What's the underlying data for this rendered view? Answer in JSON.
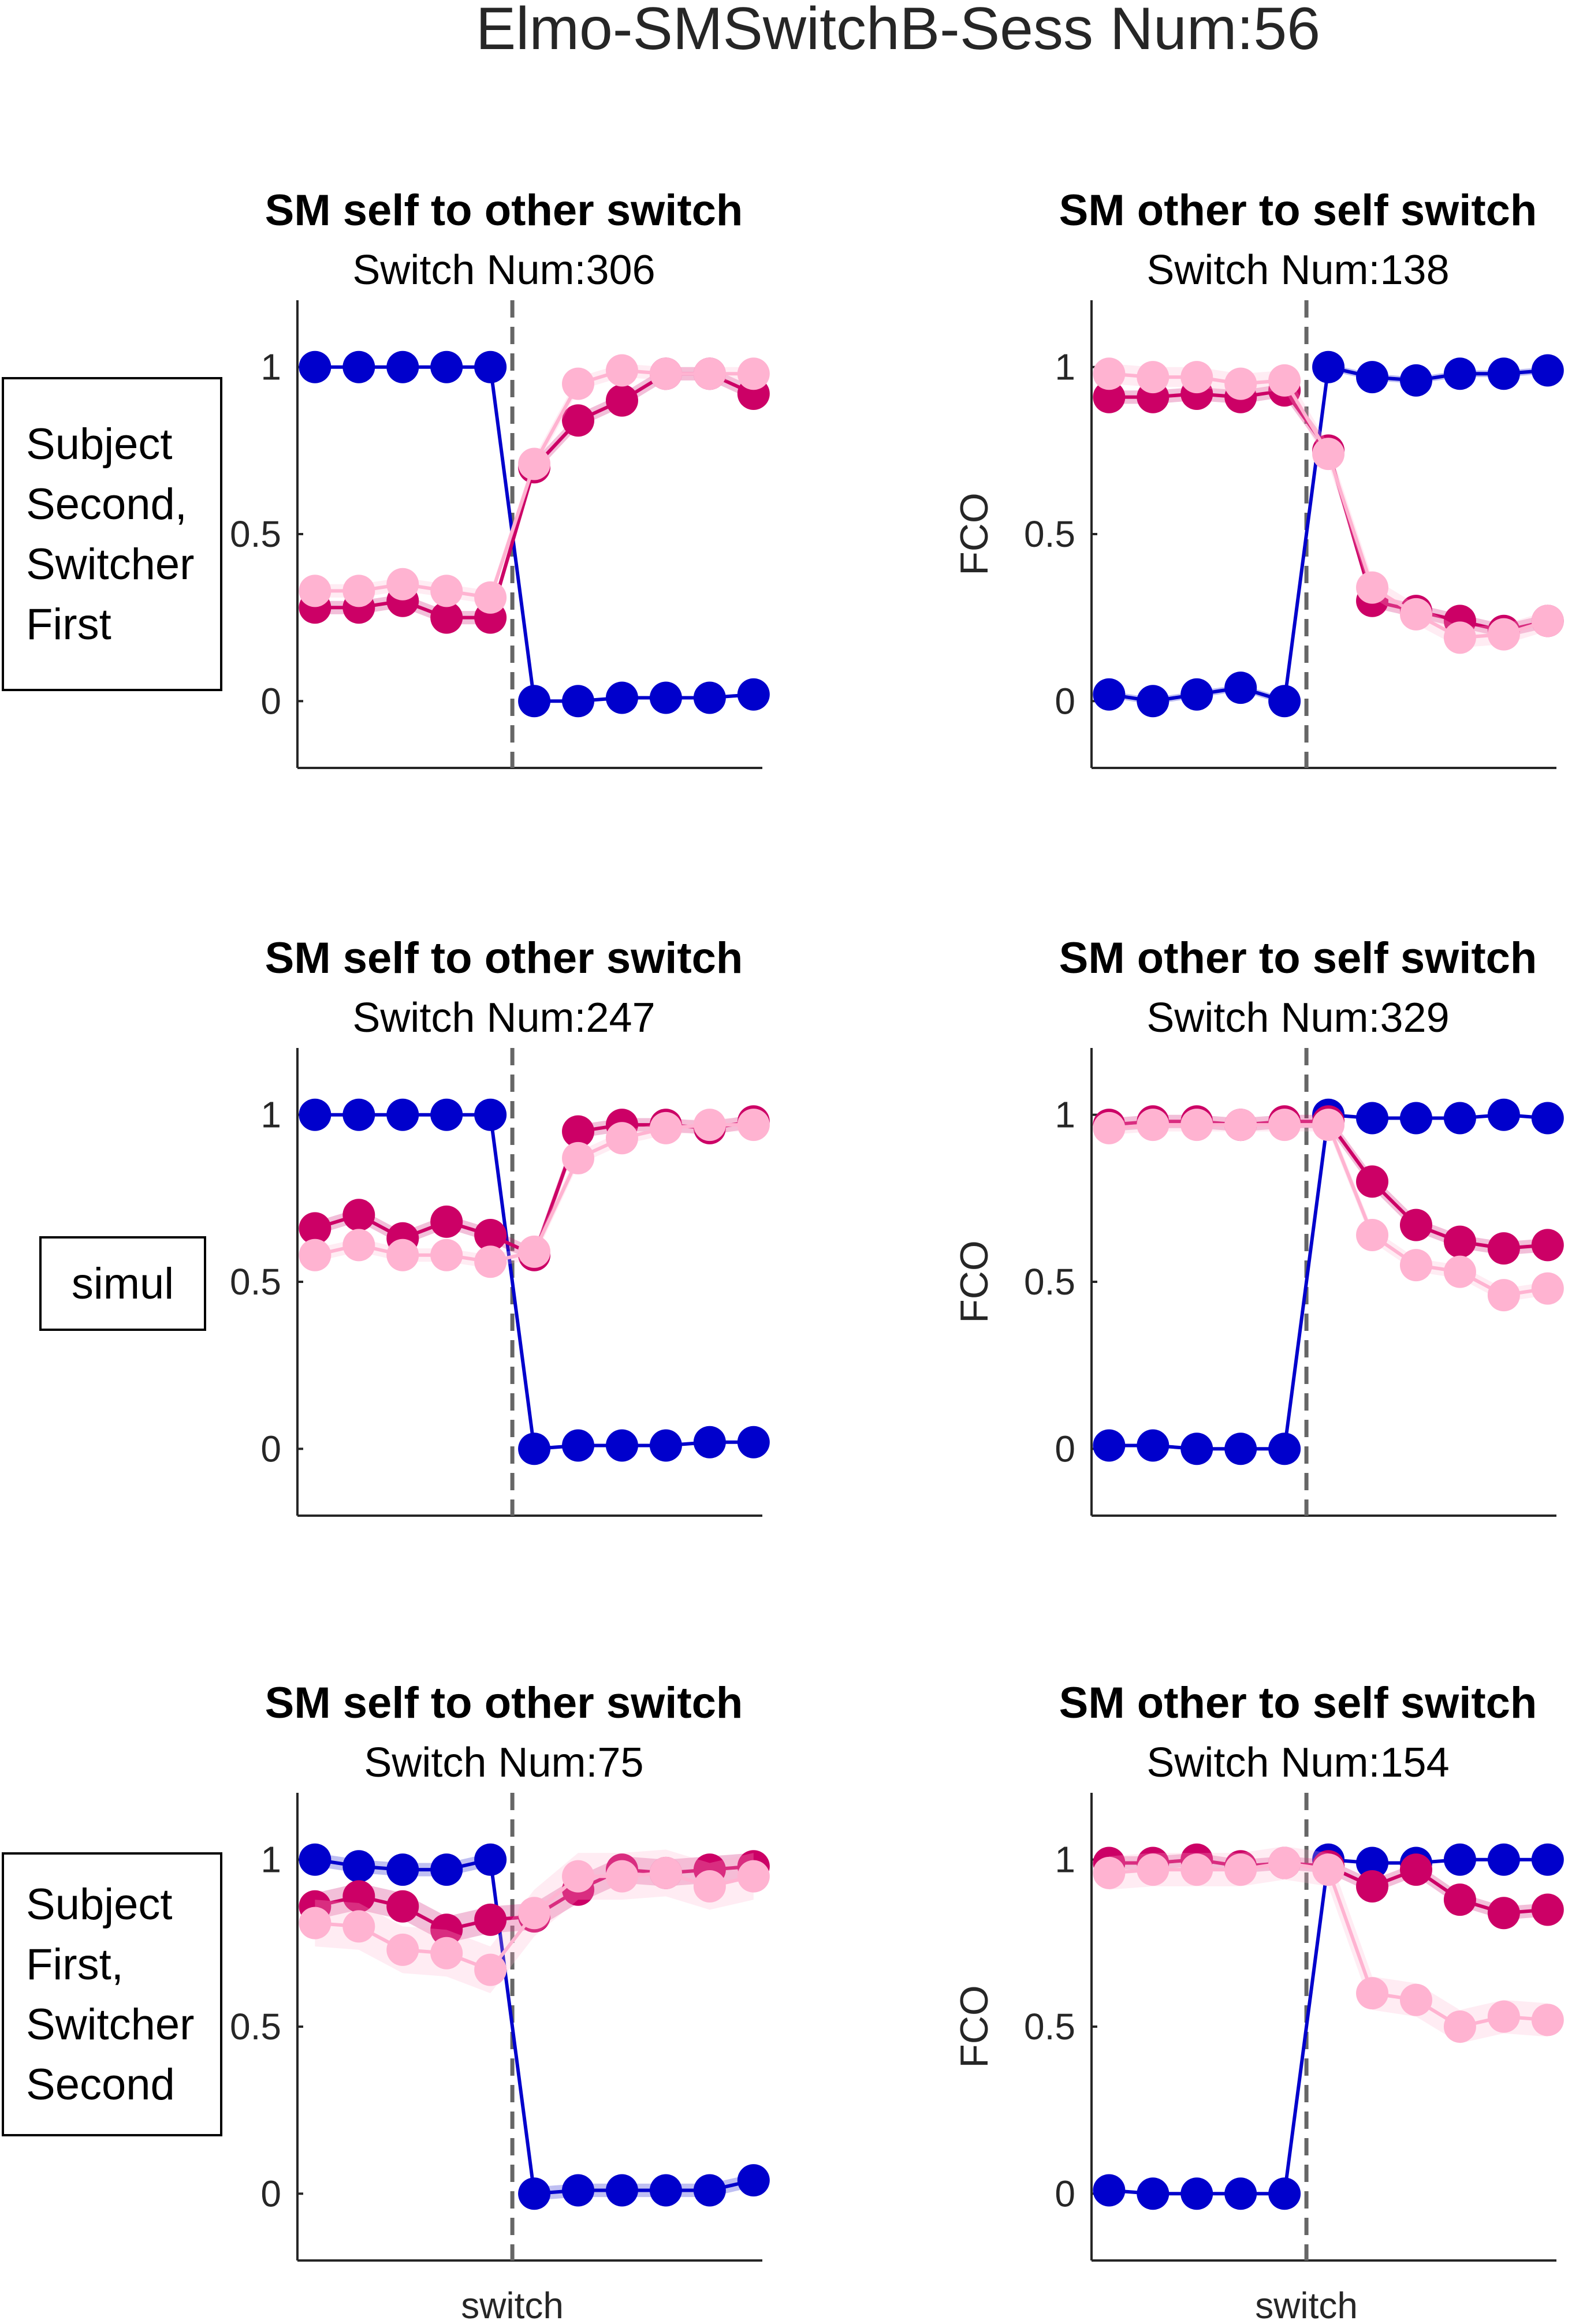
{
  "title": "Elmo-SMSwitchB-Sess Num:56",
  "colors": {
    "blue": "#0000cc",
    "magenta": "#cc0066",
    "pink": "#ffb3d1",
    "axis": "#262626",
    "switchline": "#666666"
  },
  "row_labels": [
    [
      "Subject",
      "Second,",
      "Switcher",
      "First"
    ],
    [
      "simul"
    ],
    [
      "Subject",
      "First,",
      "Switcher",
      "Second"
    ]
  ],
  "chart_data": [
    {
      "type": "line",
      "title": "SM self to other switch",
      "subtitle": "Switch Num:306",
      "ylabel": "",
      "xlabel": "",
      "ylim": [
        -0.2,
        1.2
      ],
      "yticks": [
        0,
        0.5,
        1
      ],
      "x": [
        -5,
        -4,
        -3,
        -2,
        -1,
        0,
        1,
        2,
        3,
        4,
        5
      ],
      "switch_x": -0.5,
      "series": [
        {
          "color": "blue",
          "values": [
            1,
            1,
            1,
            1,
            1,
            0,
            0,
            0.01,
            0.01,
            0.01,
            0.02
          ],
          "band": 0
        },
        {
          "color": "magenta",
          "values": [
            0.28,
            0.28,
            0.3,
            0.25,
            0.25,
            0.7,
            0.84,
            0.9,
            0.98,
            0.98,
            0.92
          ],
          "band": 0.02
        },
        {
          "color": "pink",
          "values": [
            0.33,
            0.33,
            0.35,
            0.33,
            0.31,
            0.71,
            0.95,
            0.99,
            0.98,
            0.98,
            0.98
          ],
          "band": 0.02
        }
      ]
    },
    {
      "type": "line",
      "title": "SM other to self switch",
      "subtitle": "Switch Num:138",
      "ylabel": "FCO",
      "xlabel": "",
      "ylim": [
        -0.2,
        1.2
      ],
      "yticks": [
        0,
        0.5,
        1
      ],
      "x": [
        -5,
        -4,
        -3,
        -2,
        -1,
        0,
        1,
        2,
        3,
        4,
        5
      ],
      "switch_x": -0.5,
      "series": [
        {
          "color": "blue",
          "values": [
            0.02,
            0,
            0.02,
            0.04,
            0,
            1,
            0.97,
            0.96,
            0.98,
            0.98,
            0.99
          ],
          "band": 0.01
        },
        {
          "color": "magenta",
          "values": [
            0.91,
            0.91,
            0.92,
            0.91,
            0.93,
            0.75,
            0.3,
            0.27,
            0.24,
            0.21,
            0.24
          ],
          "band": 0.02
        },
        {
          "color": "pink",
          "values": [
            0.98,
            0.97,
            0.97,
            0.95,
            0.96,
            0.74,
            0.34,
            0.26,
            0.19,
            0.2,
            0.24
          ],
          "band": 0.03
        }
      ]
    },
    {
      "type": "line",
      "title": "SM self to other switch",
      "subtitle": "Switch Num:247",
      "ylabel": "",
      "xlabel": "",
      "ylim": [
        -0.2,
        1.2
      ],
      "yticks": [
        0,
        0.5,
        1
      ],
      "x": [
        -5,
        -4,
        -3,
        -2,
        -1,
        0,
        1,
        2,
        3,
        4,
        5
      ],
      "switch_x": -0.5,
      "series": [
        {
          "color": "blue",
          "values": [
            1,
            1,
            1,
            1,
            1,
            0,
            0.01,
            0.01,
            0.01,
            0.02,
            0.02
          ],
          "band": 0
        },
        {
          "color": "magenta",
          "values": [
            0.66,
            0.7,
            0.63,
            0.68,
            0.64,
            0.58,
            0.95,
            0.97,
            0.97,
            0.96,
            0.98
          ],
          "band": 0.02
        },
        {
          "color": "pink",
          "values": [
            0.58,
            0.61,
            0.58,
            0.58,
            0.56,
            0.59,
            0.87,
            0.93,
            0.96,
            0.97,
            0.97
          ],
          "band": 0.02
        }
      ]
    },
    {
      "type": "line",
      "title": "SM other to self switch",
      "subtitle": "Switch Num:329",
      "ylabel": "FCO",
      "xlabel": "",
      "ylim": [
        -0.2,
        1.2
      ],
      "yticks": [
        0,
        0.5,
        1
      ],
      "x": [
        -5,
        -4,
        -3,
        -2,
        -1,
        0,
        1,
        2,
        3,
        4,
        5
      ],
      "switch_x": -0.5,
      "series": [
        {
          "color": "blue",
          "values": [
            0.01,
            0.01,
            0,
            0,
            0,
            1,
            0.99,
            0.99,
            0.99,
            1,
            0.99
          ],
          "band": 0
        },
        {
          "color": "magenta",
          "values": [
            0.97,
            0.98,
            0.98,
            0.97,
            0.98,
            0.98,
            0.8,
            0.67,
            0.62,
            0.6,
            0.61
          ],
          "band": 0.02
        },
        {
          "color": "pink",
          "values": [
            0.96,
            0.97,
            0.97,
            0.97,
            0.97,
            0.97,
            0.64,
            0.55,
            0.53,
            0.46,
            0.48
          ],
          "band": 0.02
        }
      ]
    },
    {
      "type": "line",
      "title": "SM self to other switch",
      "subtitle": "Switch Num:75",
      "ylabel": "",
      "xlabel": "switch",
      "ylim": [
        -0.2,
        1.2
      ],
      "yticks": [
        0,
        0.5,
        1
      ],
      "x": [
        -5,
        -4,
        -3,
        -2,
        -1,
        0,
        1,
        2,
        3,
        4,
        5
      ],
      "switch_x": -0.5,
      "series": [
        {
          "color": "blue",
          "values": [
            1,
            0.98,
            0.97,
            0.97,
            1,
            0,
            0.01,
            0.01,
            0.01,
            0.01,
            0.04
          ],
          "band": 0.02
        },
        {
          "color": "magenta",
          "values": [
            0.86,
            0.89,
            0.86,
            0.79,
            0.82,
            0.83,
            0.91,
            0.97,
            0.96,
            0.97,
            0.98
          ],
          "band": 0.04
        },
        {
          "color": "pink",
          "values": [
            0.81,
            0.8,
            0.73,
            0.72,
            0.67,
            0.84,
            0.95,
            0.95,
            0.96,
            0.92,
            0.95
          ],
          "band": 0.07
        }
      ]
    },
    {
      "type": "line",
      "title": "SM other to self switch",
      "subtitle": "Switch Num:154",
      "ylabel": "FCO",
      "xlabel": "switch",
      "ylim": [
        -0.2,
        1.2
      ],
      "yticks": [
        0,
        0.5,
        1
      ],
      "x": [
        -5,
        -4,
        -3,
        -2,
        -1,
        0,
        1,
        2,
        3,
        4,
        5
      ],
      "switch_x": -0.5,
      "series": [
        {
          "color": "blue",
          "values": [
            0.01,
            0,
            0,
            0,
            0,
            1,
            0.99,
            0.99,
            1,
            1,
            1
          ],
          "band": 0
        },
        {
          "color": "magenta",
          "values": [
            0.99,
            0.99,
            1,
            0.98,
            0.99,
            0.98,
            0.92,
            0.97,
            0.88,
            0.84,
            0.85
          ],
          "band": 0.02
        },
        {
          "color": "pink",
          "values": [
            0.96,
            0.97,
            0.97,
            0.97,
            0.99,
            0.97,
            0.6,
            0.58,
            0.5,
            0.53,
            0.52
          ],
          "band": 0.05
        }
      ]
    }
  ]
}
